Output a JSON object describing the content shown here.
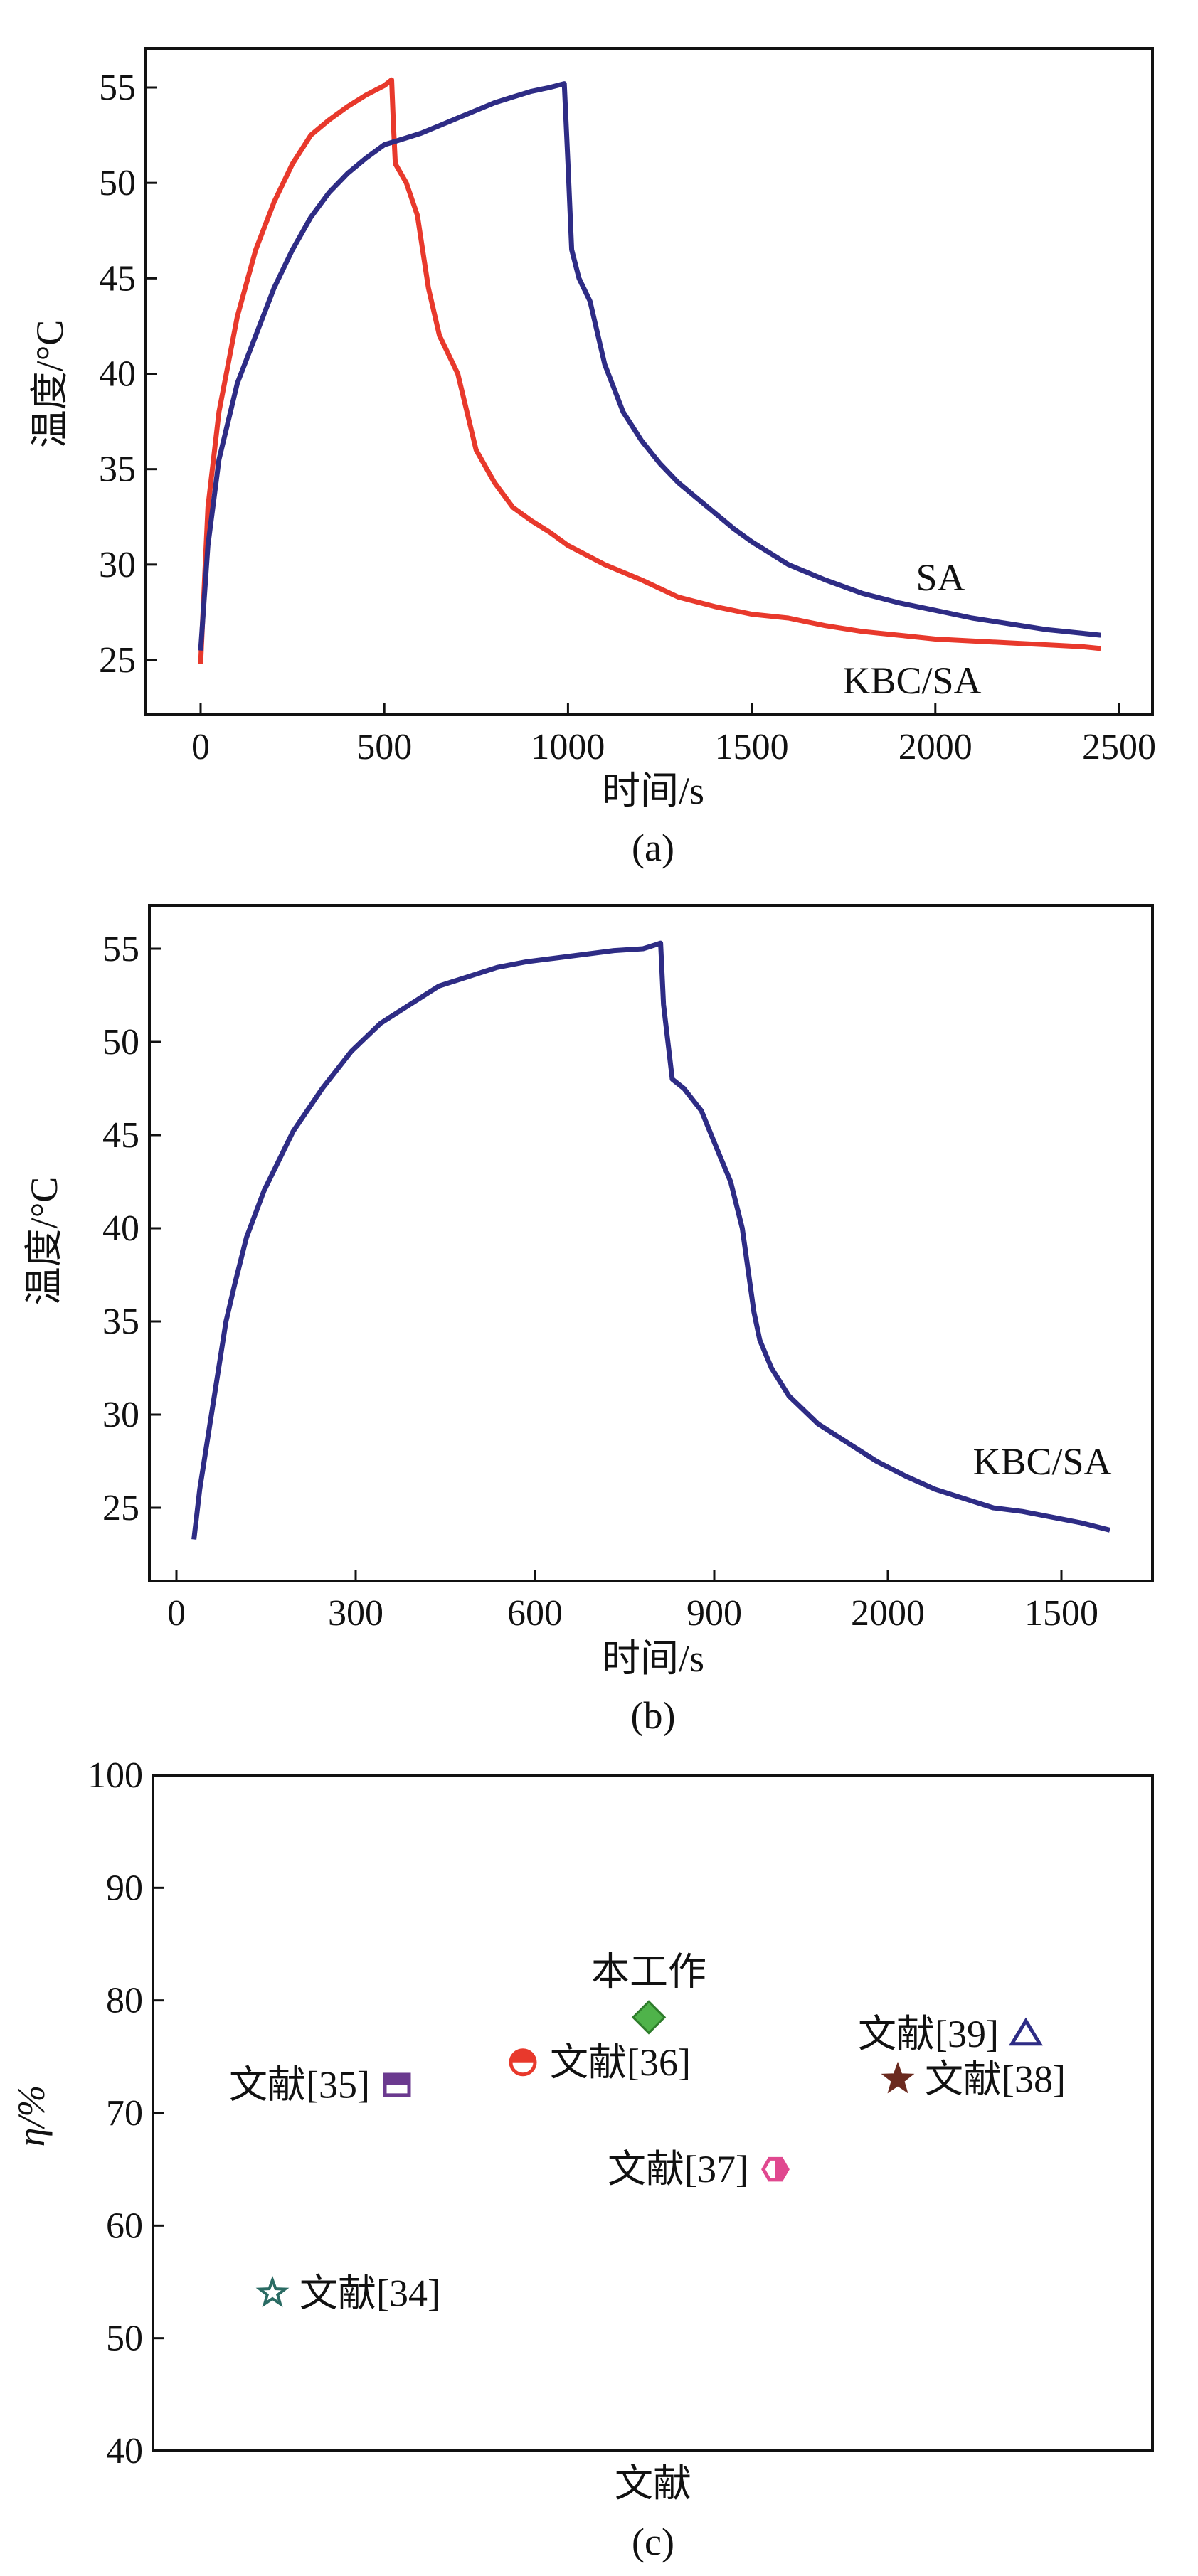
{
  "chart_data": [
    {
      "type": "line",
      "panel_label": "(a)",
      "xlabel": "时间/s",
      "ylabel": "温度/°C",
      "xlim": [
        -150,
        2600
      ],
      "ylim": [
        22.5,
        57
      ],
      "xticks": [
        0,
        500,
        1000,
        1500,
        2000,
        2500
      ],
      "yticks": [
        25,
        30,
        35,
        40,
        45,
        50,
        55
      ],
      "grid": false,
      "series": [
        {
          "name": "SA",
          "color": "#2e2c85",
          "x": [
            0,
            20,
            50,
            100,
            150,
            200,
            250,
            300,
            350,
            400,
            450,
            500,
            550,
            600,
            650,
            700,
            750,
            800,
            850,
            900,
            950,
            990,
            1000,
            1010,
            1030,
            1060,
            1100,
            1150,
            1200,
            1250,
            1300,
            1350,
            1400,
            1450,
            1500,
            1600,
            1700,
            1800,
            1900,
            2000,
            2100,
            2200,
            2300,
            2400,
            2450
          ],
          "y": [
            25.5,
            31,
            35.5,
            39.5,
            42,
            44.5,
            46.5,
            48.2,
            49.5,
            50.5,
            51.3,
            52,
            52.3,
            52.6,
            53,
            53.4,
            53.8,
            54.2,
            54.5,
            54.8,
            55,
            55.2,
            51,
            46.5,
            45,
            43.8,
            40.5,
            38,
            36.5,
            35.3,
            34.3,
            33.5,
            32.7,
            31.9,
            31.2,
            30,
            29.2,
            28.5,
            28,
            27.6,
            27.2,
            26.9,
            26.6,
            26.4,
            26.3
          ]
        },
        {
          "name": "KBC/SA",
          "color": "#e8392c",
          "x": [
            0,
            20,
            50,
            100,
            150,
            200,
            250,
            300,
            350,
            400,
            450,
            500,
            520,
            525,
            530,
            560,
            590,
            620,
            650,
            700,
            750,
            800,
            850,
            900,
            950,
            1000,
            1050,
            1100,
            1150,
            1200,
            1300,
            1400,
            1500,
            1600,
            1700,
            1800,
            1900,
            2000,
            2100,
            2200,
            2300,
            2400,
            2450
          ],
          "y": [
            24.8,
            33,
            38,
            43,
            46.5,
            49,
            51,
            52.5,
            53.3,
            54,
            54.6,
            55.1,
            55.4,
            53,
            51,
            50,
            48.3,
            44.5,
            42,
            40,
            36,
            34.3,
            33,
            32.3,
            31.7,
            31,
            30.5,
            30,
            29.6,
            29.2,
            28.3,
            27.8,
            27.4,
            27.2,
            26.8,
            26.5,
            26.3,
            26.1,
            26,
            25.9,
            25.8,
            25.7,
            25.6
          ]
        }
      ],
      "annotations": [
        "SA",
        "KBC/SA"
      ]
    },
    {
      "type": "line",
      "panel_label": "(b)",
      "xlabel": "时间/s",
      "ylabel": "温度/°C",
      "ylim": [
        21.5,
        56.5
      ],
      "xticks": [
        "0",
        "300",
        "600",
        "900",
        "2000",
        "1500"
      ],
      "yticks": [
        25,
        30,
        35,
        40,
        45,
        50,
        55
      ],
      "grid": false,
      "series": [
        {
          "name": "KBC/SA",
          "color": "#2e2c85",
          "x": [
            30,
            40,
            55,
            70,
            85,
            100,
            120,
            150,
            200,
            250,
            300,
            350,
            400,
            450,
            500,
            550,
            600,
            650,
            700,
            750,
            800,
            820,
            830,
            835,
            850,
            870,
            900,
            930,
            950,
            970,
            990,
            1000,
            1020,
            1050,
            1100,
            1150,
            1200,
            1250,
            1300,
            1350,
            1400,
            1450,
            1500,
            1550,
            1600
          ],
          "y": [
            23.3,
            26,
            29,
            32,
            35,
            37,
            39.5,
            42,
            45.2,
            47.5,
            49.5,
            51,
            52,
            53,
            53.5,
            54,
            54.3,
            54.5,
            54.7,
            54.9,
            55,
            55.2,
            55.3,
            52,
            48,
            47.5,
            46.3,
            44,
            42.5,
            40,
            35.5,
            34,
            32.5,
            31,
            29.5,
            28.5,
            27.5,
            26.7,
            26,
            25.5,
            25,
            24.8,
            24.5,
            24.2,
            23.8
          ]
        }
      ],
      "annotations": [
        "KBC/SA"
      ]
    },
    {
      "type": "scatter",
      "panel_label": "(c)",
      "xlabel": "文献",
      "ylabel": "η/%",
      "ylim": [
        40,
        100
      ],
      "yticks": [
        40,
        50,
        60,
        70,
        80,
        90,
        100
      ],
      "grid": false,
      "points": [
        {
          "label": "文献[34]",
          "y": 54,
          "marker": "star-open",
          "color": "#2a6b63"
        },
        {
          "label": "文献[35]",
          "y": 72.5,
          "marker": "square-half",
          "color": "#6b3a8f"
        },
        {
          "label": "文献[36]",
          "y": 74.5,
          "marker": "circle-half",
          "color": "#e8392c"
        },
        {
          "label": "本工作",
          "y": 78.5,
          "marker": "diamond",
          "color": "#4fb34a"
        },
        {
          "label": "文献[37]",
          "y": 65,
          "marker": "hexagon-half",
          "color": "#e0488f"
        },
        {
          "label": "文献[38]",
          "y": 73,
          "marker": "star",
          "color": "#6b2a1f"
        },
        {
          "label": "文献[39]",
          "y": 77,
          "marker": "triangle-open",
          "color": "#2e2c85"
        }
      ]
    }
  ]
}
